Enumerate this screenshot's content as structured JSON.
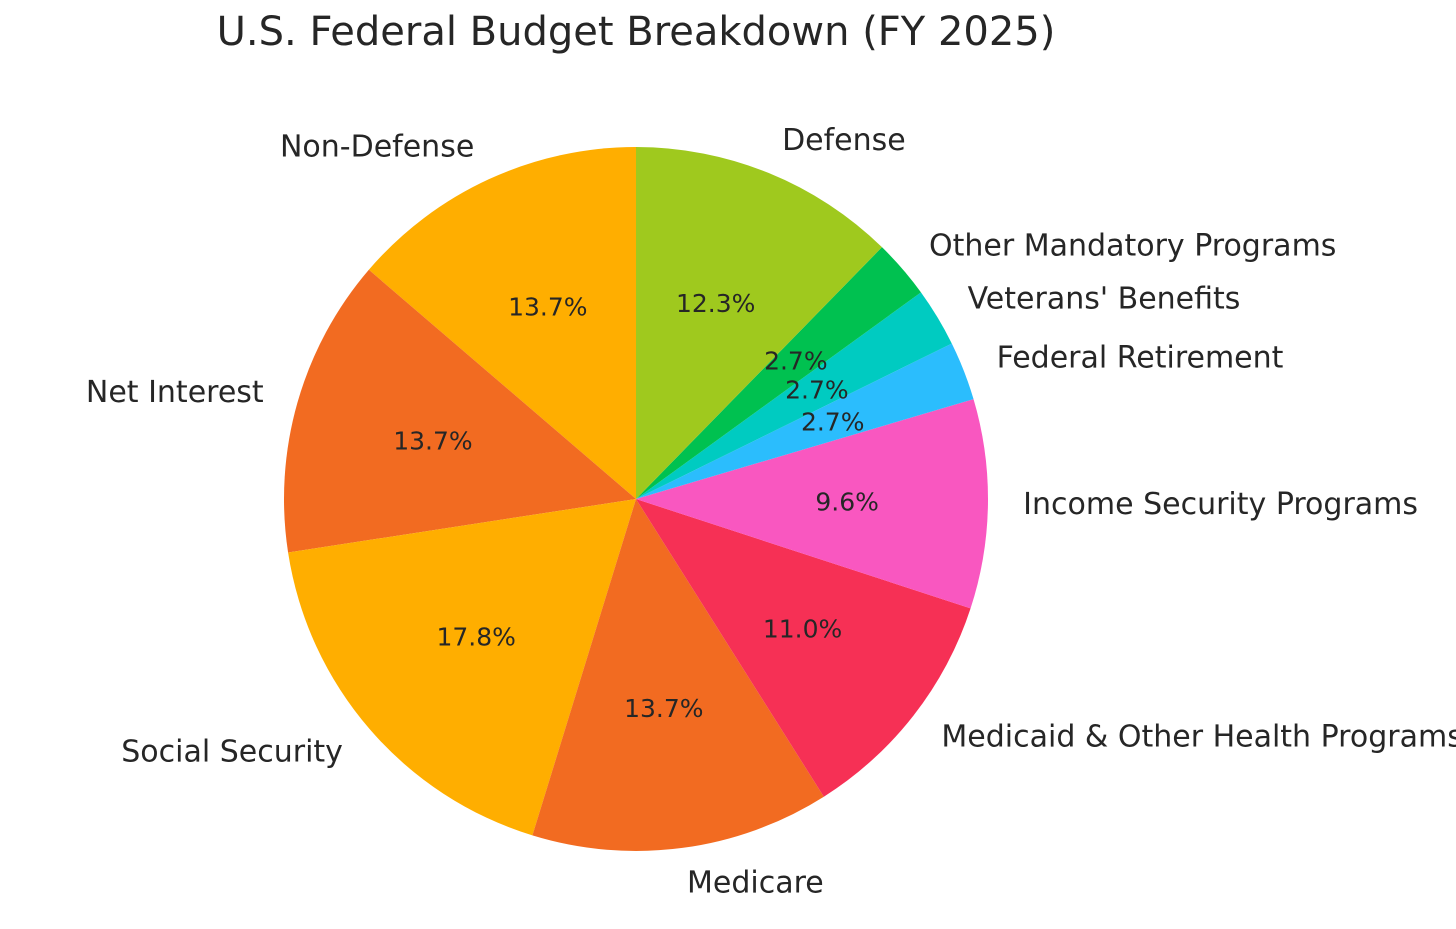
{
  "chart_data": {
    "type": "pie",
    "title": "U.S. Federal Budget Breakdown (FY 2025)",
    "slices": [
      {
        "label": "Non-Defense",
        "value": 13.7,
        "pct_label": "13.7%",
        "color": "#FFAE00"
      },
      {
        "label": "Net Interest",
        "value": 13.7,
        "pct_label": "13.7%",
        "color": "#F26B21"
      },
      {
        "label": "Social Security",
        "value": 17.8,
        "pct_label": "17.8%",
        "color": "#FFAE00"
      },
      {
        "label": "Medicare",
        "value": 13.7,
        "pct_label": "13.7%",
        "color": "#F26B21"
      },
      {
        "label": "Medicaid & Other Health Programs",
        "value": 11.0,
        "pct_label": "11.0%",
        "color": "#F63055"
      },
      {
        "label": "Income Security Programs",
        "value": 9.6,
        "pct_label": "9.6%",
        "color": "#F957C0"
      },
      {
        "label": "Federal Retirement",
        "value": 2.7,
        "pct_label": "2.7%",
        "color": "#2BBDFD"
      },
      {
        "label": "Veterans' Benefits",
        "value": 2.7,
        "pct_label": "2.7%",
        "color": "#00CBC1"
      },
      {
        "label": "Other Mandatory Programs",
        "value": 2.7,
        "pct_label": "2.7%",
        "color": "#00C150"
      },
      {
        "label": "Defense",
        "value": 12.3,
        "pct_label": "12.3%",
        "color": "#9FC91E"
      }
    ],
    "start_angle_deg": 90,
    "direction": "counterclockwise",
    "legend": "none"
  }
}
